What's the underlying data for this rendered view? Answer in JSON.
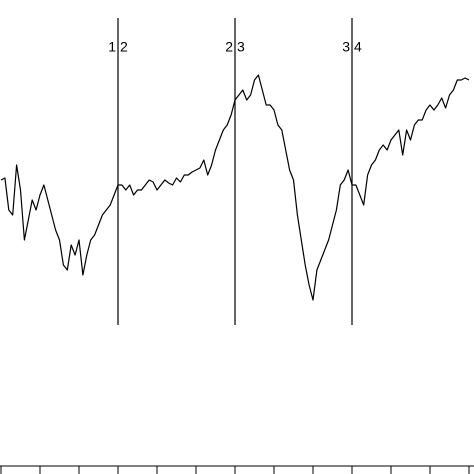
{
  "chart_data": {
    "type": "line",
    "color": "#000000",
    "x": [
      0,
      1,
      2,
      3,
      4,
      5,
      6,
      7,
      8,
      9,
      10,
      11,
      12,
      13,
      14,
      15,
      16,
      17,
      18,
      19,
      20,
      21,
      22,
      23,
      24,
      25,
      26,
      27,
      28,
      29,
      30,
      31,
      32,
      33,
      34,
      35,
      36,
      37,
      38,
      39,
      40,
      41,
      42,
      43,
      44,
      45,
      46,
      47,
      48,
      49,
      50,
      51,
      52,
      53,
      54,
      55,
      56,
      57,
      58,
      59,
      60,
      61,
      62,
      63,
      64,
      65,
      66,
      67,
      68,
      69,
      70,
      71,
      72,
      73,
      74,
      75,
      76,
      77,
      78,
      79,
      80,
      81,
      82,
      83,
      84,
      85,
      86,
      87,
      88,
      89,
      90,
      91,
      92,
      93,
      94,
      95,
      96,
      97,
      98,
      99,
      100,
      101,
      102,
      103,
      104,
      105,
      106,
      107,
      108,
      109,
      110,
      111,
      112,
      113,
      114,
      115,
      116,
      117,
      118,
      119,
      120
    ],
    "values": [
      286,
      288,
      256,
      251,
      301,
      276,
      226,
      246,
      266,
      256,
      271,
      281,
      266,
      251,
      236,
      226,
      201,
      196,
      221,
      211,
      226,
      191,
      211,
      226,
      231,
      241,
      251,
      256,
      261,
      271,
      281,
      281,
      276,
      281,
      271,
      276,
      276,
      281,
      286,
      284,
      276,
      281,
      286,
      283,
      281,
      288,
      284,
      291,
      291,
      294,
      296,
      298,
      306,
      291,
      301,
      316,
      326,
      336,
      341,
      351,
      366,
      371,
      376,
      366,
      371,
      386,
      391,
      376,
      361,
      361,
      356,
      341,
      336,
      316,
      296,
      286,
      251,
      226,
      201,
      181,
      166,
      196,
      206,
      216,
      226,
      241,
      256,
      281,
      286,
      296,
      281,
      281,
      271,
      261,
      291,
      301,
      306,
      316,
      321,
      316,
      326,
      331,
      336,
      311,
      336,
      326,
      341,
      346,
      346,
      356,
      361,
      356,
      361,
      368,
      358,
      371,
      376,
      386,
      386,
      388,
      386
    ],
    "xlim": [
      0,
      120
    ],
    "ylim": [
      0,
      466
    ],
    "xticks": [
      0,
      10,
      20,
      30,
      40,
      50,
      60,
      70,
      80,
      90,
      100,
      110,
      120
    ],
    "markers": [
      {
        "x": 30,
        "left": "1",
        "right": "2"
      },
      {
        "x": 60,
        "left": "2",
        "right": "3"
      },
      {
        "x": 90,
        "left": "3",
        "right": "4"
      }
    ]
  }
}
